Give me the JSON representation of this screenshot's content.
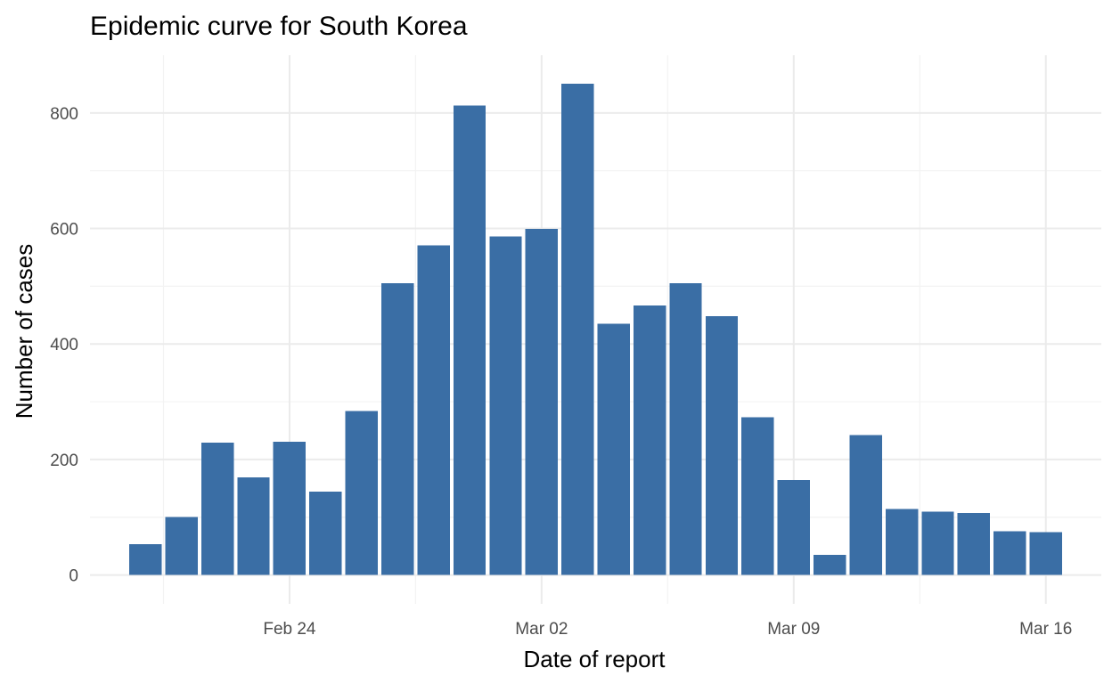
{
  "chart_data": {
    "type": "bar",
    "title": "Epidemic curve for South Korea",
    "xlabel": "Date of report",
    "ylabel": "Number of cases",
    "x": [
      "2020-02-20",
      "2020-02-21",
      "2020-02-22",
      "2020-02-23",
      "2020-02-24",
      "2020-02-25",
      "2020-02-26",
      "2020-02-27",
      "2020-02-28",
      "2020-02-29",
      "2020-03-01",
      "2020-03-02",
      "2020-03-03",
      "2020-03-04",
      "2020-03-05",
      "2020-03-06",
      "2020-03-07",
      "2020-03-08",
      "2020-03-09",
      "2020-03-10",
      "2020-03-11",
      "2020-03-12",
      "2020-03-13",
      "2020-03-14",
      "2020-03-15",
      "2020-03-16"
    ],
    "values": [
      53,
      100,
      229,
      169,
      231,
      144,
      284,
      505,
      571,
      813,
      586,
      599,
      851,
      435,
      467,
      505,
      448,
      273,
      164,
      35,
      242,
      114,
      110,
      107,
      76,
      74
    ],
    "ylim": [
      -50,
      900
    ],
    "y_ticks": [
      0,
      200,
      400,
      600,
      800
    ],
    "y_tick_labels": [
      "0",
      "200",
      "400",
      "600",
      "800"
    ],
    "x_ticks": [
      "2020-02-24",
      "2020-03-02",
      "2020-03-09",
      "2020-03-16"
    ],
    "x_tick_labels": [
      "Feb 24",
      "Mar 02",
      "Mar 09",
      "Mar 16"
    ],
    "bar_color": "#3a6ea5",
    "grid": true,
    "legend": "none"
  }
}
